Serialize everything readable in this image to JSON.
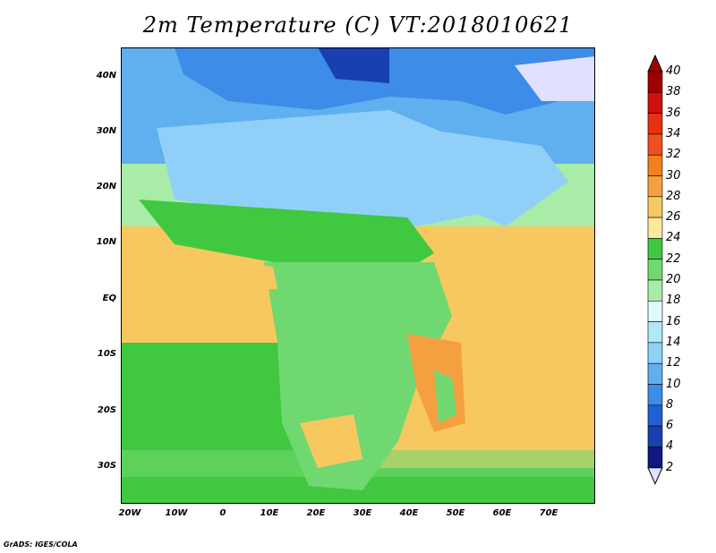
{
  "title": "2m Temperature (C) VT:2018010621",
  "lat_labels": [
    "40N",
    "30N",
    "20N",
    "10N",
    "EQ",
    "10S",
    "20S",
    "30S"
  ],
  "lon_labels": [
    "20W",
    "10W",
    "0",
    "10E",
    "20E",
    "30E",
    "40E",
    "50E",
    "60E",
    "70E"
  ],
  "colorbar": {
    "labels": [
      "40",
      "38",
      "36",
      "34",
      "32",
      "30",
      "28",
      "26",
      "24",
      "22",
      "20",
      "18",
      "16",
      "14",
      "12",
      "10",
      "8",
      "6",
      "4",
      "2"
    ],
    "colors": [
      "#a00000",
      "#d01010",
      "#e83010",
      "#f05020",
      "#f08020",
      "#f5a040",
      "#f8c860",
      "#fde8a0",
      "#40c840",
      "#70d870",
      "#a8eca8",
      "#e0fcf8",
      "#b0e8f8",
      "#90d0f8",
      "#60b0f0",
      "#3c8ce8",
      "#2060d0",
      "#1840b0",
      "#101880"
    ],
    "over_color": "#a00000",
    "under_color": "#e0e0ff"
  },
  "credit": "GrADS: IGES/COLA"
}
